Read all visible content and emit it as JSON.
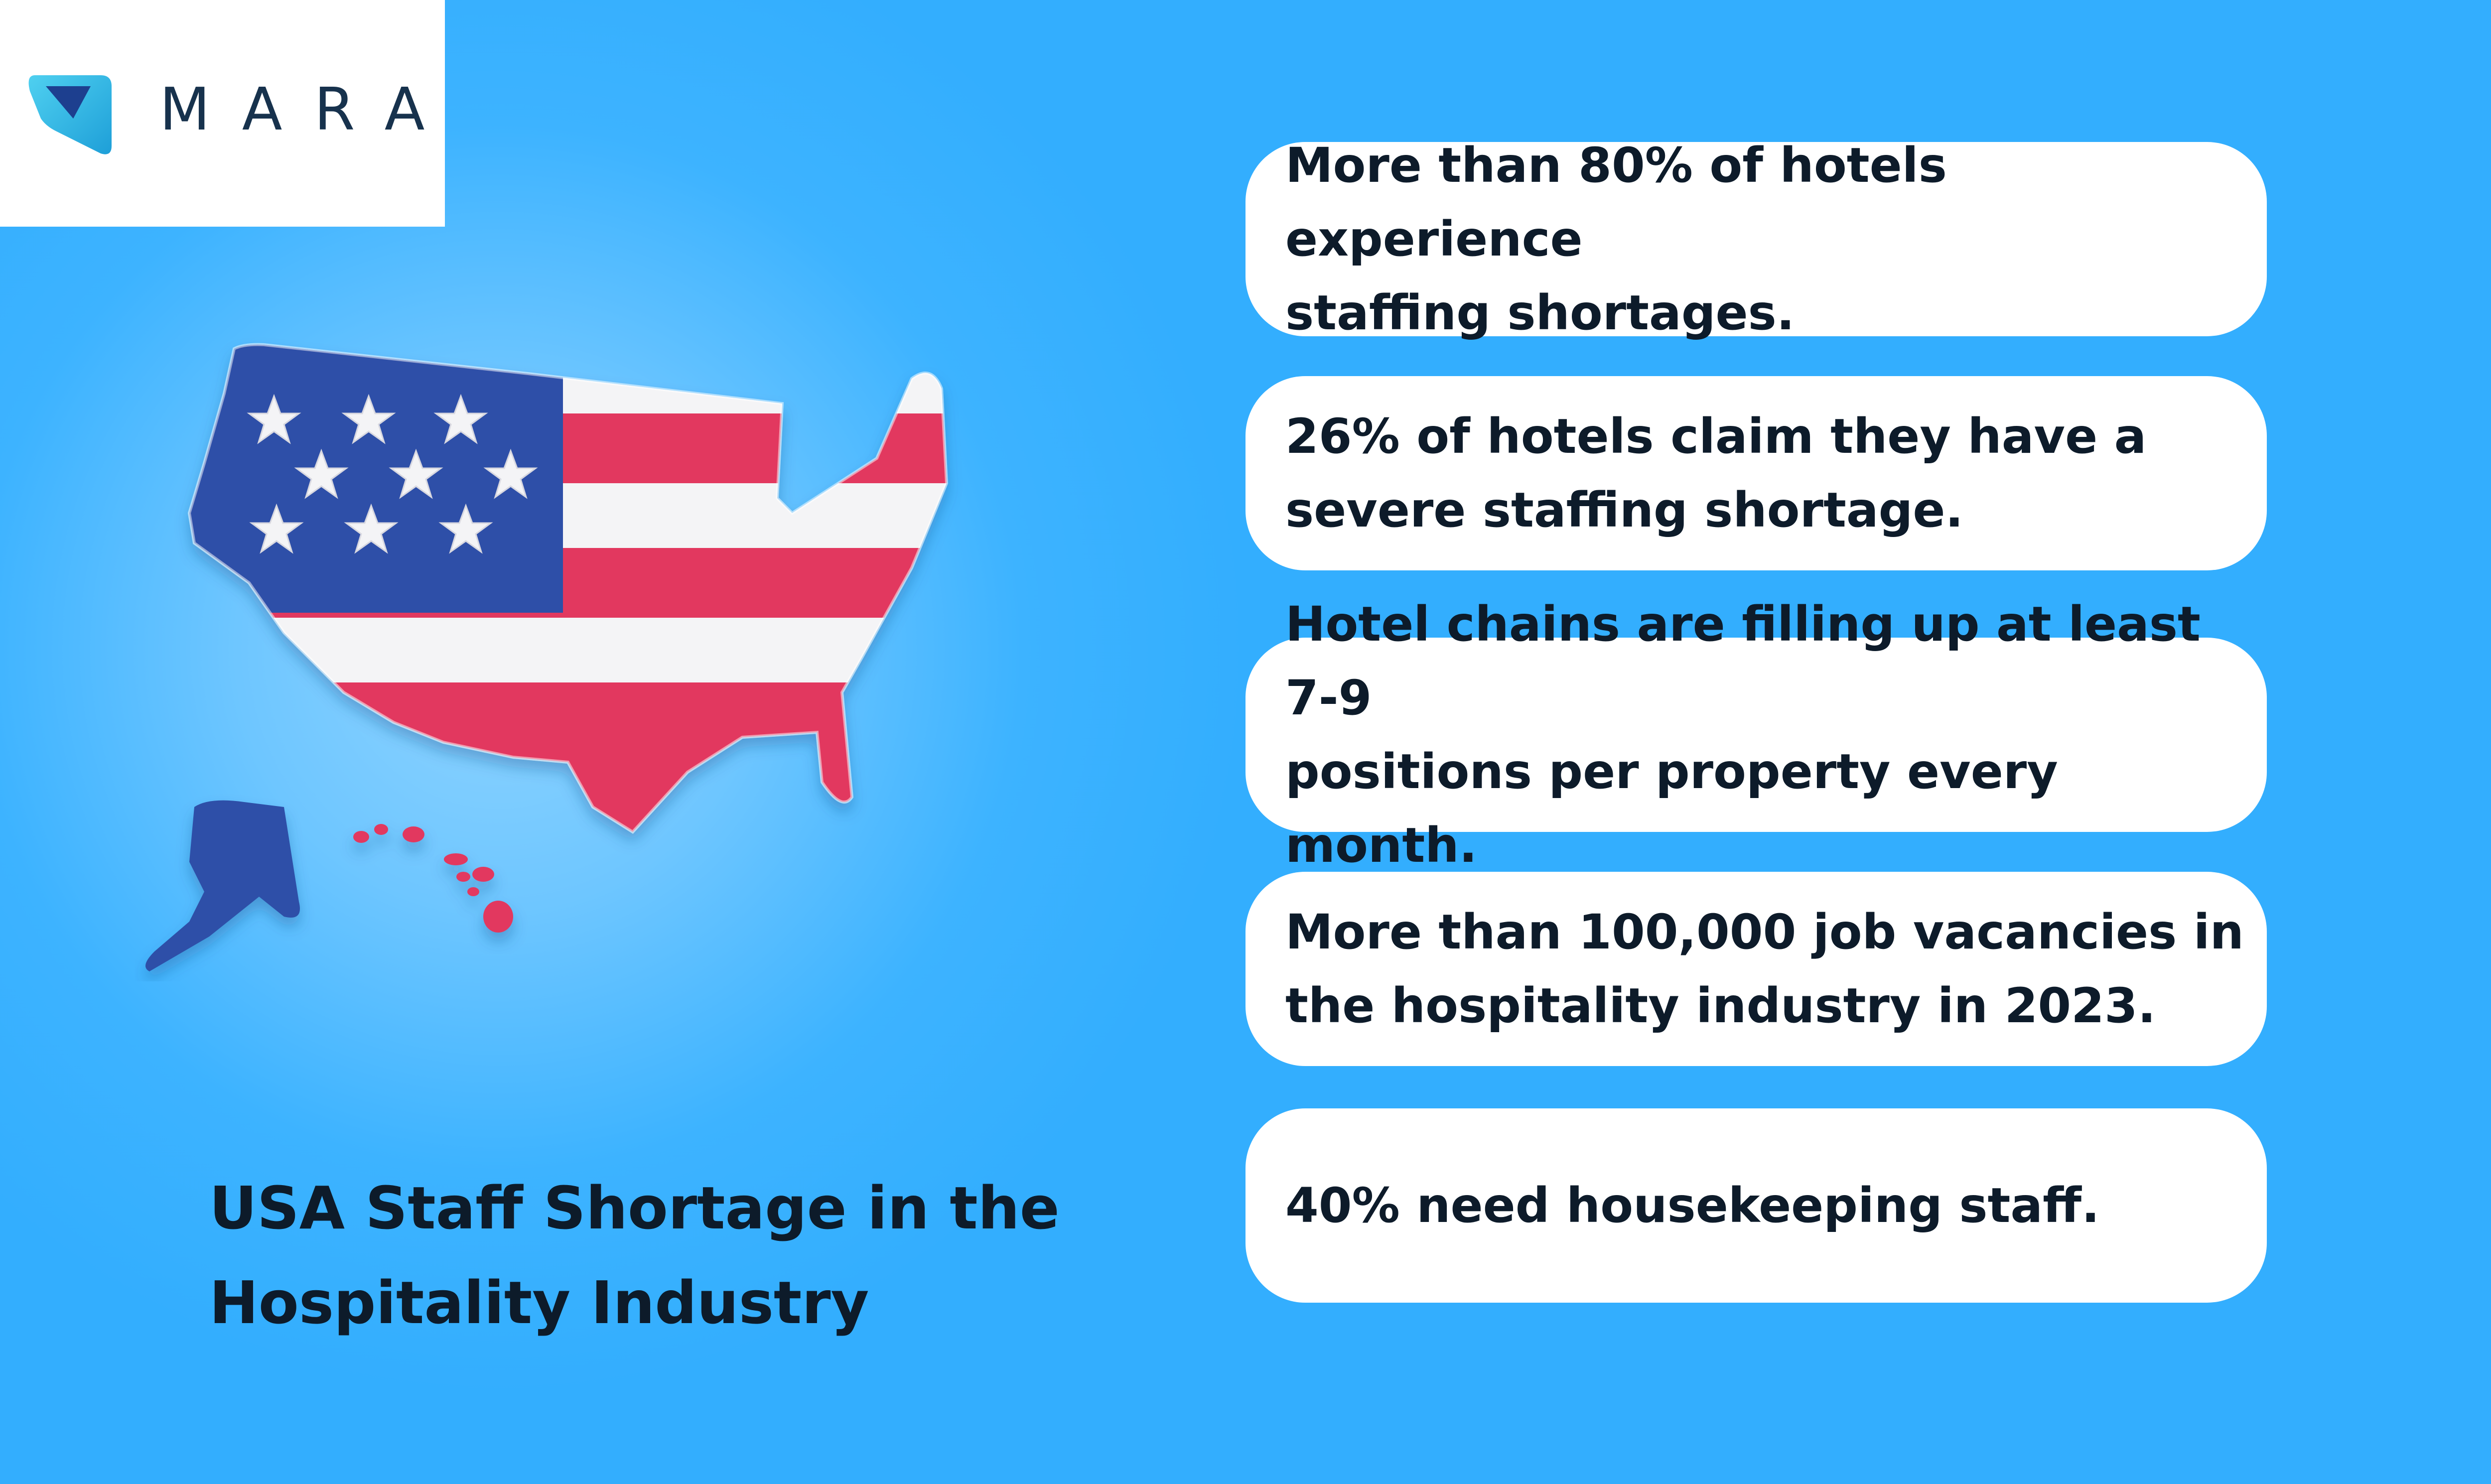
{
  "brand": {
    "name": "MARA"
  },
  "title": {
    "line1": "USA Staff Shortage in the",
    "line2": "Hospitality Industry"
  },
  "stats": [
    {
      "text": "More than 80% of hotels experience\nstaffing shortages."
    },
    {
      "text": "26% of hotels claim they have a\nsevere staffing shortage."
    },
    {
      "text": "Hotel chains are filling up at least 7-9\npositions per property every month."
    },
    {
      "text": "More than 100,000 job vacancies in\nthe hospitality industry in 2023."
    },
    {
      "text": "40% need housekeeping staff."
    }
  ],
  "colors": {
    "background": "#33aefe",
    "flag_blue": "#2f4fa8",
    "flag_red": "#e2385f",
    "flag_white": "#f4f4f6",
    "logo_teal": "#2fb7e6",
    "logo_navy": "#17324d"
  },
  "icons": {
    "logo": "mara-logo-icon",
    "map": "usa-flag-map-illustration"
  }
}
